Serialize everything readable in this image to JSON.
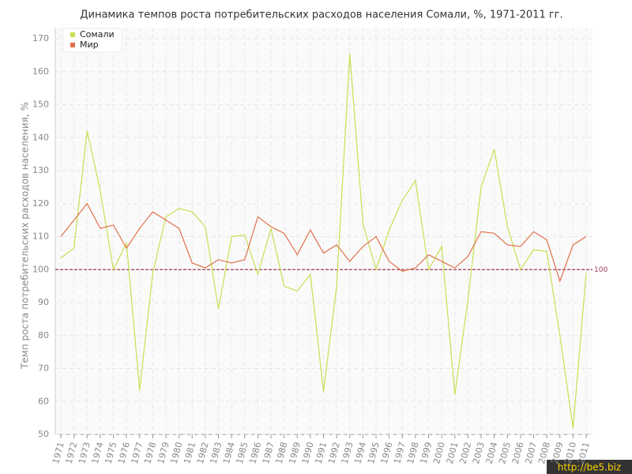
{
  "chart_data": {
    "type": "line",
    "title": "Динамика темпов роста потребительских расходов населения Сомали, %, 1971-2011 гг.",
    "y_label": "Темп роста потребительских расходов населения, %",
    "categories": [
      "1971",
      "1972",
      "1973",
      "1974",
      "1975",
      "1976",
      "1977",
      "1978",
      "1979",
      "1980",
      "1981",
      "1982",
      "1983",
      "1984",
      "1985",
      "1986",
      "1987",
      "1988",
      "1989",
      "1990",
      "1991",
      "1992",
      "1993",
      "1994",
      "1995",
      "1996",
      "1997",
      "1998",
      "1999",
      "2000",
      "2001",
      "2002",
      "2003",
      "2004",
      "2005",
      "2006",
      "2007",
      "2008",
      "2009",
      "2010",
      "2011"
    ],
    "series": [
      {
        "name": "Сомали",
        "color": "#c8df52",
        "values": [
          103.5,
          106.5,
          142,
          124,
          100,
          108,
          63.5,
          99,
          116,
          118.5,
          117.5,
          113,
          88,
          110,
          110.5,
          98.5,
          112.5,
          95,
          93.5,
          98.5,
          63,
          95,
          165.5,
          114,
          100,
          112,
          121,
          127,
          100,
          107,
          62,
          91,
          125,
          136.5,
          113,
          100,
          106,
          105.5,
          80,
          52,
          99
        ]
      },
      {
        "name": "Мир",
        "color": "#e0714a",
        "values": [
          110,
          115,
          120,
          112.5,
          113.5,
          106.5,
          112.5,
          117.5,
          115,
          112.5,
          102,
          100.5,
          103,
          102,
          103,
          116,
          113,
          111,
          104.5,
          112,
          105,
          107.5,
          102.5,
          107,
          110,
          102.5,
          99.5,
          100.5,
          104.5,
          102.5,
          100.5,
          104,
          111.5,
          111,
          107.5,
          107,
          111.5,
          109,
          96.5,
          107.5,
          110
        ]
      }
    ],
    "ylim": [
      50,
      170
    ],
    "yticks": [
      50,
      60,
      70,
      80,
      90,
      100,
      110,
      120,
      130,
      140,
      150,
      160,
      170
    ],
    "reference_line": {
      "value": 100,
      "color": "#a23a55"
    },
    "grid": true,
    "legend": "top-left",
    "watermark": "http://be5.biz"
  }
}
